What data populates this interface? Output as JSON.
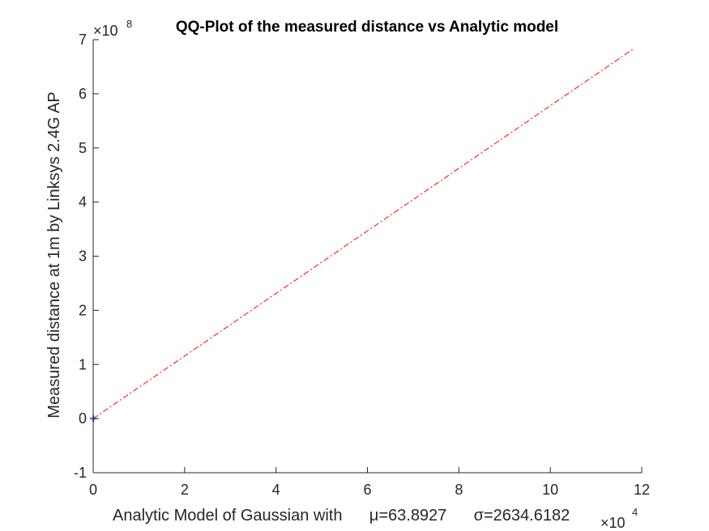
{
  "chart_data": {
    "type": "line",
    "title": "QQ-Plot of the measured distance vs Analytic model",
    "xlabel": "Analytic Model of Gaussian with      μ=63.8927      σ=2634.6182",
    "ylabel": "Measured distance at 1m by Linksys 2.4G AP",
    "x_exponent": {
      "base": "×10",
      "power": "4"
    },
    "y_exponent": {
      "base": "×10",
      "power": "8"
    },
    "xlim": [
      0,
      12
    ],
    "ylim": [
      -1,
      7
    ],
    "xticks": [
      "0",
      "2",
      "4",
      "6",
      "8",
      "10",
      "12"
    ],
    "yticks": [
      "-1",
      "0",
      "1",
      "2",
      "3",
      "4",
      "5",
      "6",
      "7"
    ],
    "grid": false,
    "series": [
      {
        "role": "data-quantiles",
        "style": "marker",
        "color": "#0000ff",
        "x": [
          0.0,
          0.01
        ],
        "y": [
          0.0,
          0.0
        ]
      },
      {
        "role": "reference-line",
        "style": "dash-dot",
        "color": "#ff0000",
        "x": [
          0.0,
          11.8
        ],
        "y": [
          0.0,
          6.82
        ]
      }
    ]
  }
}
